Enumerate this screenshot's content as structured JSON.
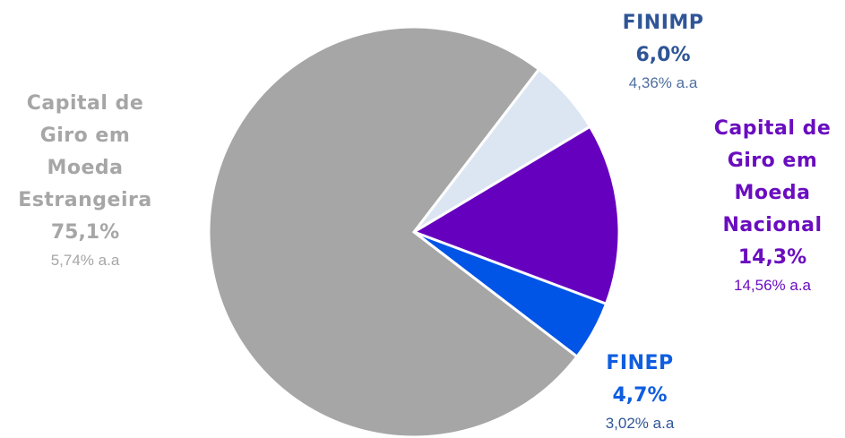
{
  "chart_data": {
    "type": "pie",
    "categories": [
      "FINIMP",
      "Capital de Giro em Moeda Nacional",
      "FINEP",
      "Capital de Giro em Moeda Estrangeira"
    ],
    "values": [
      6.0,
      14.3,
      4.7,
      75.1
    ],
    "value_labels": [
      "6,0%",
      "14,3%",
      "4,7%",
      "75,1%"
    ],
    "annotations": [
      "4,36% a.a",
      "14,56% a.a",
      "3,02% a.a",
      "5,74% a.a"
    ],
    "colors": [
      "#dce6f2",
      "#6600bf",
      "#0055e6",
      "#a6a6a6"
    ]
  }
}
